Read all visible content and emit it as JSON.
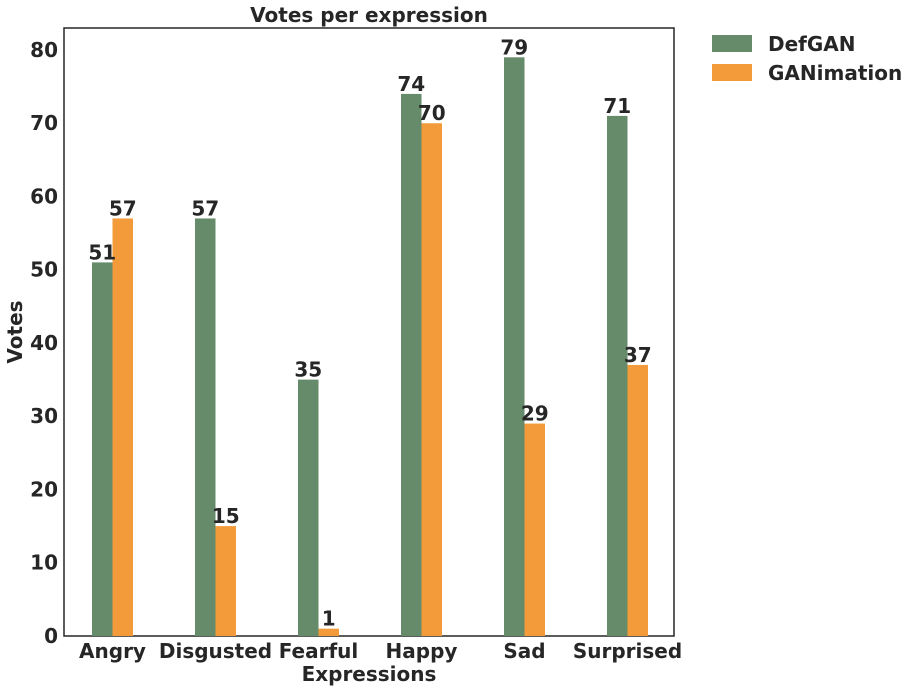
{
  "chart_data": {
    "type": "bar",
    "title": "Votes per expression",
    "xlabel": "Expressions",
    "ylabel": "Votes",
    "categories": [
      "Angry",
      "Disgusted",
      "Fearful",
      "Happy",
      "Sad",
      "Surprised"
    ],
    "series": [
      {
        "name": "DefGAN",
        "color": "#668b6b",
        "values": [
          51,
          57,
          35,
          74,
          79,
          71
        ]
      },
      {
        "name": "GANimation",
        "color": "#f39b3a",
        "values": [
          57,
          15,
          1,
          70,
          29,
          37
        ]
      }
    ],
    "ylim": [
      0,
      83
    ],
    "yticks": [
      0,
      10,
      20,
      30,
      40,
      50,
      60,
      70,
      80
    ],
    "grid": false,
    "legend_position": "outside-top-right",
    "data_labels": true
  }
}
